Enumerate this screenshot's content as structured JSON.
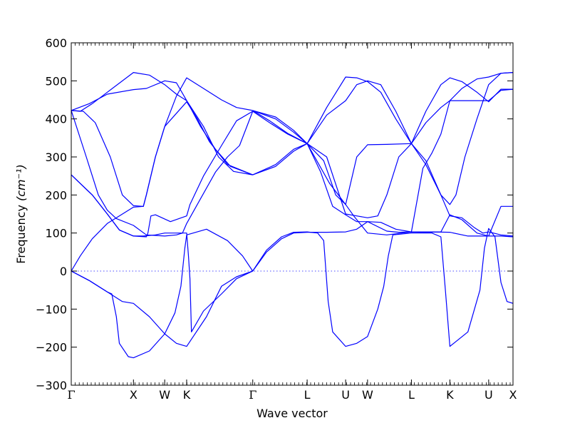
{
  "chart_data": {
    "type": "line",
    "title": "",
    "xlabel": "Wave vector",
    "ylabel": "Frequency",
    "ylabel_unit": "(cm⁻¹)",
    "ylim": [
      -300,
      600
    ],
    "xlim": [
      0,
      14.7
    ],
    "line_color": "#0000ff",
    "zero_line": true,
    "grid": false,
    "yticks": [
      -300,
      -200,
      -100,
      0,
      100,
      200,
      300,
      400,
      500,
      600
    ],
    "ytick_labels": [
      "−300",
      "−200",
      "−100",
      "0",
      "100",
      "200",
      "300",
      "400",
      "500",
      "600"
    ],
    "high_symmetry_points": [
      {
        "label": "Γ",
        "x": 0
      },
      {
        "label": "X",
        "x": 2.07
      },
      {
        "label": "W",
        "x": 3.11
      },
      {
        "label": "K",
        "x": 3.84
      },
      {
        "label": "Γ",
        "x": 6.04
      },
      {
        "label": "L",
        "x": 7.85
      },
      {
        "label": "U",
        "x": 9.13
      },
      {
        "label": "W",
        "x": 9.86
      },
      {
        "label": "L",
        "x": 11.32
      },
      {
        "label": "K",
        "x": 12.6
      },
      {
        "label": "U",
        "x": 13.89
      },
      {
        "label": "X",
        "x": 14.7
      }
    ],
    "series": [
      {
        "values": [
          [
            0,
            0
          ],
          [
            0.6,
            -25
          ],
          [
            1.2,
            -55
          ],
          [
            1.7,
            -80
          ],
          [
            2.07,
            -85
          ],
          [
            2.6,
            -120
          ],
          [
            3.11,
            -165
          ],
          [
            3.5,
            -190
          ],
          [
            3.84,
            -198
          ],
          [
            4.5,
            -120
          ],
          [
            5.0,
            -40
          ],
          [
            5.5,
            -15
          ],
          [
            6.04,
            0
          ]
        ]
      },
      {
        "values": [
          [
            0,
            0
          ],
          [
            0.6,
            -25
          ],
          [
            1.2,
            -55
          ],
          [
            1.35,
            -60
          ],
          [
            1.5,
            -120
          ],
          [
            1.6,
            -190
          ],
          [
            1.9,
            -225
          ],
          [
            2.07,
            -228
          ],
          [
            2.6,
            -210
          ],
          [
            3.11,
            -165
          ],
          [
            3.45,
            -110
          ],
          [
            3.65,
            -40
          ],
          [
            3.78,
            60
          ],
          [
            3.84,
            95
          ],
          [
            4.5,
            110
          ],
          [
            5.2,
            80
          ],
          [
            5.7,
            40
          ],
          [
            6.04,
            0
          ]
        ]
      },
      {
        "values": [
          [
            0,
            0
          ],
          [
            0.3,
            40
          ],
          [
            0.7,
            85
          ],
          [
            1.2,
            125
          ],
          [
            2.07,
            168
          ],
          [
            2.4,
            170
          ],
          [
            2.5,
            200
          ],
          [
            2.8,
            300
          ],
          [
            3.11,
            380
          ],
          [
            3.84,
            445
          ],
          [
            4.2,
            400
          ],
          [
            4.6,
            340
          ],
          [
            5.2,
            280
          ],
          [
            6.04,
            253
          ]
        ]
      },
      {
        "values": [
          [
            0,
            253
          ],
          [
            0.7,
            200
          ],
          [
            1.2,
            150
          ],
          [
            1.6,
            108
          ],
          [
            2.07,
            92
          ],
          [
            2.5,
            90
          ],
          [
            2.55,
            100
          ],
          [
            2.65,
            145
          ],
          [
            2.8,
            148
          ],
          [
            3.3,
            130
          ],
          [
            3.84,
            145
          ],
          [
            3.95,
            175
          ],
          [
            4.4,
            250
          ],
          [
            5.0,
            330
          ],
          [
            5.5,
            395
          ],
          [
            6.04,
            420
          ]
        ]
      },
      {
        "values": [
          [
            0,
            253
          ],
          [
            0.7,
            200
          ],
          [
            1.2,
            150
          ],
          [
            1.6,
            108
          ],
          [
            2.07,
            92
          ],
          [
            2.4,
            92
          ],
          [
            2.8,
            95
          ],
          [
            3.11,
            100
          ],
          [
            3.6,
            100
          ],
          [
            3.84,
            100
          ],
          [
            3.9,
            40
          ],
          [
            3.95,
            -20
          ],
          [
            4.0,
            -160
          ],
          [
            4.4,
            -105
          ],
          [
            5.0,
            -60
          ],
          [
            5.5,
            -20
          ],
          [
            6.04,
            0
          ]
        ]
      },
      {
        "values": [
          [
            0,
            422
          ],
          [
            0.6,
            440
          ],
          [
            1.2,
            465
          ],
          [
            2.07,
            477
          ],
          [
            2.5,
            480
          ],
          [
            3.11,
            500
          ],
          [
            3.5,
            495
          ],
          [
            3.84,
            448
          ],
          [
            4.3,
            380
          ],
          [
            4.8,
            320
          ],
          [
            5.3,
            275
          ],
          [
            6.04,
            253
          ]
        ]
      },
      {
        "values": [
          [
            0,
            422
          ],
          [
            0.4,
            420
          ],
          [
            0.8,
            390
          ],
          [
            1.3,
            300
          ],
          [
            1.7,
            200
          ],
          [
            2.07,
            172
          ],
          [
            2.4,
            170
          ],
          [
            2.5,
            200
          ],
          [
            2.8,
            300
          ],
          [
            3.11,
            380
          ],
          [
            3.5,
            460
          ],
          [
            3.84,
            508
          ],
          [
            4.4,
            480
          ],
          [
            5.0,
            450
          ],
          [
            5.5,
            430
          ],
          [
            6.04,
            422
          ]
        ]
      },
      {
        "values": [
          [
            0,
            422
          ],
          [
            0.5,
            300
          ],
          [
            0.9,
            200
          ],
          [
            1.2,
            160
          ],
          [
            1.5,
            138
          ],
          [
            2.07,
            120
          ],
          [
            2.5,
            95
          ],
          [
            3.11,
            92
          ],
          [
            3.5,
            95
          ],
          [
            3.7,
            100
          ],
          [
            3.84,
            125
          ],
          [
            4.3,
            190
          ],
          [
            4.8,
            260
          ],
          [
            5.2,
            300
          ],
          [
            5.6,
            330
          ],
          [
            6.04,
            420
          ]
        ]
      },
      {
        "values": [
          [
            0,
            422
          ],
          [
            0.3,
            420
          ],
          [
            0.7,
            440
          ],
          [
            1.2,
            470
          ],
          [
            2.07,
            522
          ],
          [
            2.6,
            515
          ],
          [
            3.11,
            490
          ],
          [
            3.5,
            465
          ],
          [
            3.84,
            448
          ],
          [
            4.4,
            380
          ],
          [
            4.9,
            300
          ],
          [
            5.4,
            262
          ],
          [
            6.04,
            253
          ]
        ]
      },
      {
        "values": [
          [
            6.04,
            0
          ],
          [
            6.5,
            50
          ],
          [
            7.0,
            85
          ],
          [
            7.4,
            100
          ],
          [
            7.85,
            102
          ],
          [
            8.5,
            102
          ],
          [
            9.13,
            103
          ],
          [
            9.5,
            110
          ],
          [
            9.86,
            130
          ],
          [
            10.3,
            128
          ],
          [
            10.8,
            110
          ],
          [
            11.32,
            103
          ],
          [
            12.0,
            103
          ],
          [
            12.6,
            102
          ],
          [
            13.2,
            92
          ],
          [
            13.89,
            92
          ],
          [
            14.3,
            92
          ],
          [
            14.7,
            90
          ]
        ]
      },
      {
        "values": [
          [
            6.04,
            0
          ],
          [
            6.5,
            55
          ],
          [
            7.0,
            90
          ],
          [
            7.4,
            102
          ],
          [
            7.85,
            103
          ],
          [
            8.2,
            100
          ],
          [
            8.4,
            80
          ],
          [
            8.55,
            -80
          ],
          [
            8.7,
            -160
          ],
          [
            9.13,
            -198
          ],
          [
            9.5,
            -190
          ],
          [
            9.86,
            -172
          ],
          [
            10.2,
            -100
          ],
          [
            10.4,
            -40
          ],
          [
            10.55,
            40
          ],
          [
            10.7,
            95
          ],
          [
            11.32,
            100
          ],
          [
            12.0,
            100
          ],
          [
            12.3,
            90
          ],
          [
            12.45,
            -50
          ],
          [
            12.6,
            -198
          ],
          [
            13.2,
            -160
          ],
          [
            13.6,
            -50
          ],
          [
            13.75,
            60
          ],
          [
            13.89,
            112
          ],
          [
            14.1,
            90
          ],
          [
            14.3,
            -30
          ],
          [
            14.5,
            -80
          ],
          [
            14.7,
            -85
          ]
        ]
      },
      {
        "values": [
          [
            6.04,
            253
          ],
          [
            6.8,
            280
          ],
          [
            7.4,
            320
          ],
          [
            7.85,
            335
          ],
          [
            8.5,
            300
          ],
          [
            9.13,
            150
          ],
          [
            9.5,
            145
          ],
          [
            9.86,
            140
          ],
          [
            10.2,
            145
          ],
          [
            10.5,
            200
          ],
          [
            10.9,
            300
          ],
          [
            11.32,
            335
          ],
          [
            11.8,
            280
          ],
          [
            12.3,
            200
          ],
          [
            12.6,
            145
          ],
          [
            13.0,
            140
          ],
          [
            13.4,
            115
          ],
          [
            13.7,
            100
          ],
          [
            13.89,
            103
          ],
          [
            14.3,
            95
          ],
          [
            14.7,
            92
          ]
        ]
      },
      {
        "values": [
          [
            6.04,
            253
          ],
          [
            6.8,
            275
          ],
          [
            7.4,
            315
          ],
          [
            7.85,
            335
          ],
          [
            8.6,
            230
          ],
          [
            9.13,
            175
          ],
          [
            9.5,
            300
          ],
          [
            9.86,
            332
          ],
          [
            10.5,
            333
          ],
          [
            11.32,
            335
          ],
          [
            11.8,
            290
          ],
          [
            12.3,
            200
          ],
          [
            12.6,
            175
          ],
          [
            12.8,
            200
          ],
          [
            13.1,
            300
          ],
          [
            13.5,
            400
          ],
          [
            13.89,
            490
          ],
          [
            14.3,
            520
          ],
          [
            14.7,
            522
          ]
        ]
      },
      {
        "values": [
          [
            6.04,
            422
          ],
          [
            6.8,
            400
          ],
          [
            7.4,
            365
          ],
          [
            7.85,
            335
          ],
          [
            8.5,
            410
          ],
          [
            9.13,
            448
          ],
          [
            9.5,
            490
          ],
          [
            9.86,
            500
          ],
          [
            10.3,
            490
          ],
          [
            10.8,
            420
          ],
          [
            11.32,
            335
          ],
          [
            11.8,
            390
          ],
          [
            12.3,
            430
          ],
          [
            12.6,
            448
          ],
          [
            13.0,
            480
          ],
          [
            13.5,
            505
          ],
          [
            13.89,
            510
          ],
          [
            14.3,
            520
          ],
          [
            14.7,
            522
          ]
        ]
      },
      {
        "values": [
          [
            6.04,
            422
          ],
          [
            6.8,
            405
          ],
          [
            7.4,
            370
          ],
          [
            7.85,
            335
          ],
          [
            8.5,
            430
          ],
          [
            9.13,
            510
          ],
          [
            9.5,
            508
          ],
          [
            9.86,
            498
          ],
          [
            10.3,
            470
          ],
          [
            10.8,
            400
          ],
          [
            11.32,
            335
          ],
          [
            11.8,
            420
          ],
          [
            12.3,
            490
          ],
          [
            12.6,
            508
          ],
          [
            13.0,
            498
          ],
          [
            13.5,
            470
          ],
          [
            13.89,
            445
          ],
          [
            14.3,
            478
          ],
          [
            14.7,
            478
          ]
        ]
      },
      {
        "values": [
          [
            6.04,
            420
          ],
          [
            6.6,
            390
          ],
          [
            7.2,
            360
          ],
          [
            7.85,
            335
          ],
          [
            8.4,
            290
          ],
          [
            8.8,
            200
          ],
          [
            9.13,
            175
          ],
          [
            9.4,
            145
          ],
          [
            9.86,
            100
          ],
          [
            10.5,
            95
          ],
          [
            11.32,
            103
          ],
          [
            11.7,
            270
          ],
          [
            12.0,
            310
          ],
          [
            12.3,
            360
          ],
          [
            12.6,
            448
          ],
          [
            12.9,
            448
          ],
          [
            13.4,
            448
          ],
          [
            13.89,
            448
          ],
          [
            14.3,
            475
          ],
          [
            14.7,
            478
          ]
        ]
      },
      {
        "values": [
          [
            6.04,
            422
          ],
          [
            6.6,
            395
          ],
          [
            7.2,
            362
          ],
          [
            7.85,
            335
          ],
          [
            8.3,
            260
          ],
          [
            8.7,
            170
          ],
          [
            9.13,
            148
          ],
          [
            9.5,
            130
          ],
          [
            9.86,
            130
          ],
          [
            10.5,
            105
          ],
          [
            10.9,
            102
          ],
          [
            11.32,
            103
          ],
          [
            11.8,
            102
          ],
          [
            12.3,
            103
          ],
          [
            12.6,
            148
          ],
          [
            13.0,
            135
          ],
          [
            13.5,
            100
          ],
          [
            13.89,
            92
          ],
          [
            14.3,
            170
          ],
          [
            14.7,
            170
          ]
        ]
      }
    ]
  }
}
